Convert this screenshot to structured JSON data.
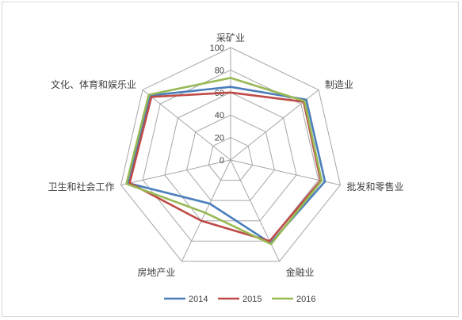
{
  "chart_data": {
    "type": "radar",
    "categories": [
      "采矿业",
      "制造业",
      "批发和零售业",
      "金融业",
      "房地产业",
      "卫生和社会工作",
      "文化、体育和娱乐业"
    ],
    "series": [
      {
        "name": "2014",
        "values": [
          65,
          86,
          86,
          82,
          43,
          93,
          92
        ],
        "color": "#4a7ebb"
      },
      {
        "name": "2015",
        "values": [
          60,
          83,
          82,
          80,
          60,
          92,
          90
        ],
        "color": "#be4b48"
      },
      {
        "name": "2016",
        "values": [
          73,
          84,
          83,
          83,
          52,
          95,
          93
        ],
        "color": "#98b954"
      }
    ],
    "rlim": [
      0,
      100
    ],
    "ticks": [
      0,
      20,
      40,
      60,
      80,
      100
    ],
    "tick_labels": [
      "0",
      "20",
      "40",
      "60",
      "80",
      "100"
    ],
    "grid": true,
    "legend_position": "bottom"
  }
}
